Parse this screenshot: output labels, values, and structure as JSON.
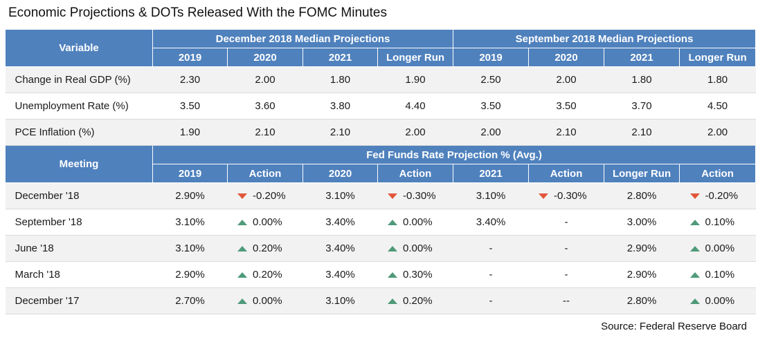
{
  "title": "Economic Projections & DOTs Released With the FOMC Minutes",
  "source": "Source: Federal Reserve Board",
  "projections": {
    "variable_header": "Variable",
    "group_headers": [
      "December 2018 Median Projections",
      "September 2018 Median Projections"
    ],
    "columns": [
      "2019",
      "2020",
      "2021",
      "Longer Run",
      "2019",
      "2020",
      "2021",
      "Longer Run"
    ],
    "rows": [
      {
        "label": "Change in Real GDP (%)",
        "values": [
          "2.30",
          "2.00",
          "1.80",
          "1.90",
          "2.50",
          "2.00",
          "1.80",
          "1.80"
        ]
      },
      {
        "label": "Unemployment Rate (%)",
        "values": [
          "3.50",
          "3.60",
          "3.80",
          "4.40",
          "3.50",
          "3.50",
          "3.70",
          "4.50"
        ]
      },
      {
        "label": "PCE Inflation (%)",
        "values": [
          "1.90",
          "2.10",
          "2.10",
          "2.00",
          "2.00",
          "2.10",
          "2.10",
          "2.00"
        ]
      }
    ]
  },
  "fedfunds": {
    "meeting_header": "Meeting",
    "group_header": "Fed Funds Rate Projection % (Avg.)",
    "columns": [
      "2019",
      "Action",
      "2020",
      "Action",
      "2021",
      "Action",
      "Longer Run",
      "Action"
    ],
    "rows": [
      {
        "label": "December '18",
        "cells": [
          {
            "v": "2.90%"
          },
          {
            "v": "-0.20%",
            "dir": "down"
          },
          {
            "v": "3.10%"
          },
          {
            "v": "-0.30%",
            "dir": "down"
          },
          {
            "v": "3.10%"
          },
          {
            "v": "-0.30%",
            "dir": "down"
          },
          {
            "v": "2.80%"
          },
          {
            "v": "-0.20%",
            "dir": "down"
          }
        ]
      },
      {
        "label": "September '18",
        "cells": [
          {
            "v": "3.10%"
          },
          {
            "v": "0.00%",
            "dir": "up"
          },
          {
            "v": "3.40%"
          },
          {
            "v": "0.00%",
            "dir": "up"
          },
          {
            "v": "3.40%"
          },
          {
            "v": "-"
          },
          {
            "v": "3.00%"
          },
          {
            "v": "0.10%",
            "dir": "up"
          }
        ]
      },
      {
        "label": "June '18",
        "cells": [
          {
            "v": "3.10%"
          },
          {
            "v": "0.20%",
            "dir": "up"
          },
          {
            "v": "3.40%"
          },
          {
            "v": "0.00%",
            "dir": "up"
          },
          {
            "v": "-"
          },
          {
            "v": "-"
          },
          {
            "v": "2.90%"
          },
          {
            "v": "0.00%",
            "dir": "up"
          }
        ]
      },
      {
        "label": "March '18",
        "cells": [
          {
            "v": "2.90%"
          },
          {
            "v": "0.20%",
            "dir": "up"
          },
          {
            "v": "3.40%"
          },
          {
            "v": "0.30%",
            "dir": "up"
          },
          {
            "v": "-"
          },
          {
            "v": "-"
          },
          {
            "v": "2.90%"
          },
          {
            "v": "0.10%",
            "dir": "up"
          }
        ]
      },
      {
        "label": "December '17",
        "cells": [
          {
            "v": "2.70%"
          },
          {
            "v": "0.00%",
            "dir": "up"
          },
          {
            "v": "3.10%"
          },
          {
            "v": "0.20%",
            "dir": "up"
          },
          {
            "v": "-"
          },
          {
            "v": "--"
          },
          {
            "v": "2.80%"
          },
          {
            "v": "0.00%",
            "dir": "up"
          }
        ]
      }
    ]
  },
  "colors": {
    "header_bg": "#4f81bd",
    "down_icon": "#e2573a",
    "up_icon": "#4f9a7a",
    "shade_row": "#f2f2f2"
  }
}
